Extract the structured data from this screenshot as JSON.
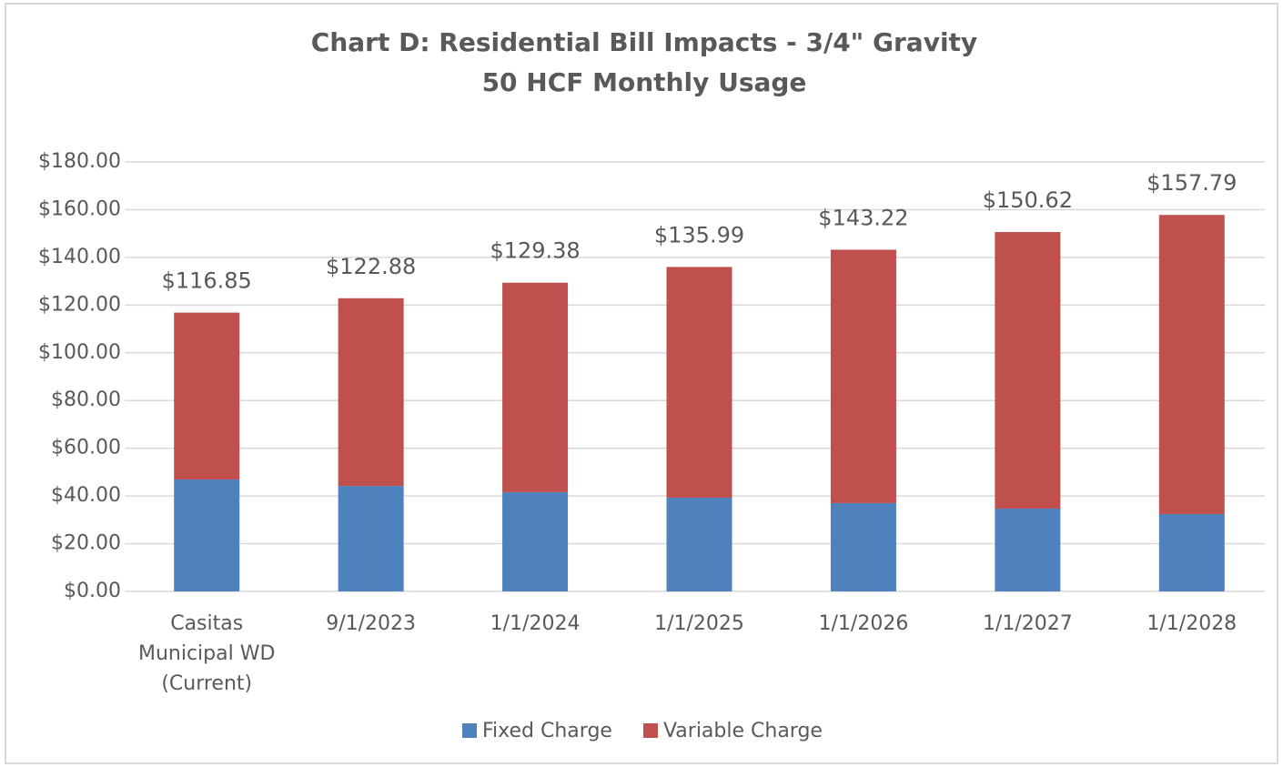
{
  "chart_data": {
    "type": "stacked_bar",
    "title": "Chart D: Residential Bill Impacts - 3/4\" Gravity",
    "subtitle": "50 HCF Monthly Usage",
    "categories": [
      "Casitas Municipal WD (Current)",
      "9/1/2023",
      "1/1/2024",
      "1/1/2025",
      "1/1/2026",
      "1/1/2027",
      "1/1/2028"
    ],
    "series": [
      {
        "name": "Fixed Charge",
        "color": "#4f81bd",
        "values": [
          46.9,
          44.2,
          41.6,
          39.3,
          37.0,
          34.7,
          32.4
        ]
      },
      {
        "name": "Variable Charge",
        "color": "#c0504d",
        "values": [
          69.95,
          78.68,
          87.78,
          96.69,
          106.22,
          115.92,
          125.39
        ]
      }
    ],
    "totals": [
      116.85,
      122.88,
      129.38,
      135.99,
      143.22,
      150.62,
      157.79
    ],
    "total_labels": [
      "$116.85",
      "$122.88",
      "$129.38",
      "$135.99",
      "$143.22",
      "$150.62",
      "$157.79"
    ],
    "ylim": [
      0,
      180
    ],
    "yticks": [
      {
        "value": 0,
        "label": "$0.00"
      },
      {
        "value": 20,
        "label": "$20.00"
      },
      {
        "value": 40,
        "label": "$40.00"
      },
      {
        "value": 60,
        "label": "$60.00"
      },
      {
        "value": 80,
        "label": "$80.00"
      },
      {
        "value": 100,
        "label": "$100.00"
      },
      {
        "value": 120,
        "label": "$120.00"
      },
      {
        "value": 140,
        "label": "$140.00"
      },
      {
        "value": 160,
        "label": "$160.00"
      },
      {
        "value": 180,
        "label": "$180.00"
      }
    ],
    "grid": true,
    "legend": "bottom"
  }
}
